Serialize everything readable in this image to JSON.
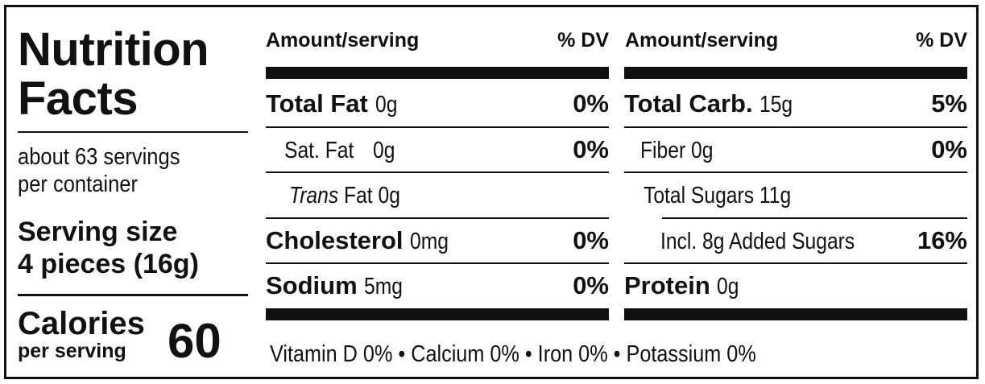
{
  "title_line1": "Nutrition",
  "title_line2": "Facts",
  "servings_line1": "about 63 servings",
  "servings_line2": "per container",
  "serving_size_label": "Serving size",
  "serving_size_value": "4 pieces (16g)",
  "calories_label": "Calories",
  "calories_sub": "per serving",
  "calories_value": "60",
  "left_col": {
    "header_amount": "Amount/serving",
    "header_dv": "% DV",
    "rows": [
      {
        "name": "Total Fat",
        "amount": "0g",
        "dv": "0%"
      },
      {
        "name": "Sat. Fat",
        "amount": "0g",
        "dv": "0%"
      },
      {
        "name_italic": "Trans",
        "name_rest": "Fat 0g",
        "dv": ""
      },
      {
        "name": "Cholesterol",
        "amount": "0mg",
        "dv": "0%"
      },
      {
        "name": "Sodium",
        "amount": "5mg",
        "dv": "0%"
      }
    ]
  },
  "right_col": {
    "header_amount": "Amount/serving",
    "header_dv": "% DV",
    "rows": [
      {
        "name": "Total Carb.",
        "amount": "15g",
        "dv": "5%"
      },
      {
        "name": "Fiber 0g",
        "dv": "0%"
      },
      {
        "name": "Total Sugars 11g",
        "dv": ""
      },
      {
        "name": "Incl. 8g Added Sugars",
        "dv": "16%"
      },
      {
        "name": "Protein",
        "amount": "0g",
        "dv": ""
      }
    ]
  },
  "vitamins": "Vitamin D 0% • Calcium 0% • Iron 0% • Potassium 0%",
  "colors": {
    "ink": "#111111",
    "background": "#ffffff"
  }
}
